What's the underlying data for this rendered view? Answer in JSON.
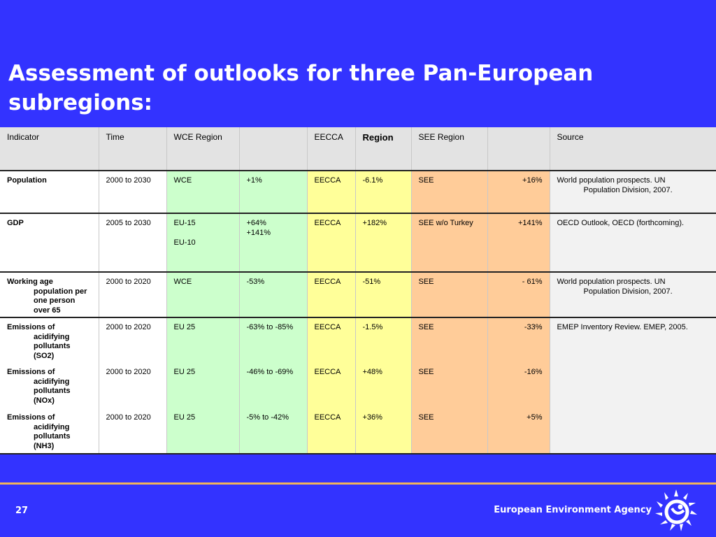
{
  "slide": {
    "title_line1": "Assessment of outlooks for three Pan-European",
    "title_line2": "subregions:",
    "page_number": "27",
    "agency_name": "European Environment Agency"
  },
  "colors": {
    "background": "#3333ff",
    "wce": "#ccffcc",
    "eecca": "#ffff99",
    "see": "#ffcc99",
    "source": "#f2f2f2",
    "header": "#e3e3e3",
    "rule": "#f0b45a"
  },
  "icons": {
    "logo": "eea-sun-logo-icon"
  },
  "table": {
    "headers": [
      "Indicator",
      "Time",
      "WCE Region",
      "",
      "EECCA",
      "Region",
      "SEE Region",
      "",
      "Source"
    ],
    "rows": [
      {
        "indicator_first": "Population",
        "indicator_rest": [],
        "time": "2000 to 2030",
        "wce_region": [
          "WCE"
        ],
        "wce_value": [
          "+1%"
        ],
        "eecca_region": "EECCA",
        "eecca_value": "-6.1%",
        "see_region": "SEE",
        "see_value": "+16%",
        "source_first": "World population prospects.  UN",
        "source_rest": "Population Division, 2007."
      },
      {
        "indicator_first": "GDP",
        "indicator_rest": [],
        "time": "2005 to 2030",
        "wce_region": [
          "EU-15",
          "EU-10"
        ],
        "wce_value": [
          "+64%",
          "+141%"
        ],
        "eecca_region": "EECCA",
        "eecca_value": "+182%",
        "see_region": "SEE w/o Turkey",
        "see_value": "+141%",
        "source_first": "OECD Outlook, OECD (forthcoming).",
        "source_rest": ""
      },
      {
        "indicator_first": "Working age",
        "indicator_rest": [
          "population per",
          "one person",
          "over 65"
        ],
        "time": "2000 to 2020",
        "wce_region": [
          "WCE"
        ],
        "wce_value": [
          "-53%"
        ],
        "eecca_region": "EECCA",
        "eecca_value": "-51%",
        "see_region": "SEE",
        "see_value": "- 61%",
        "source_first": "World population prospects.  UN",
        "source_rest": "Population Division, 2007."
      },
      {
        "indicator_first": "Emissions of",
        "indicator_rest": [
          "acidifying",
          "pollutants",
          "(SO2)"
        ],
        "time": "2000 to 2020",
        "wce_region": [
          "EU 25"
        ],
        "wce_value": [
          "-63% to -85%"
        ],
        "eecca_region": "EECCA",
        "eecca_value": "-1.5%",
        "see_region": "SEE",
        "see_value": "-33%",
        "source_first": "EMEP Inventory Review. EMEP, 2005.",
        "source_rest": ""
      },
      {
        "indicator_first": "Emissions of",
        "indicator_rest": [
          "acidifying",
          "pollutants",
          "(NOx)"
        ],
        "time": "2000 to 2020",
        "wce_region": [
          "EU 25"
        ],
        "wce_value": [
          "-46% to -69%"
        ],
        "eecca_region": "EECCA",
        "eecca_value": "+48%",
        "see_region": "SEE",
        "see_value": "-16%",
        "source_first": "",
        "source_rest": ""
      },
      {
        "indicator_first": "Emissions of",
        "indicator_rest": [
          "acidifying",
          "pollutants",
          "(NH3)"
        ],
        "time": "2000 to 2020",
        "wce_region": [
          "EU 25"
        ],
        "wce_value": [
          "-5% to -42%"
        ],
        "eecca_region": "EECCA",
        "eecca_value": "+36%",
        "see_region": "SEE",
        "see_value": "+5%",
        "source_first": "",
        "source_rest": ""
      }
    ]
  }
}
